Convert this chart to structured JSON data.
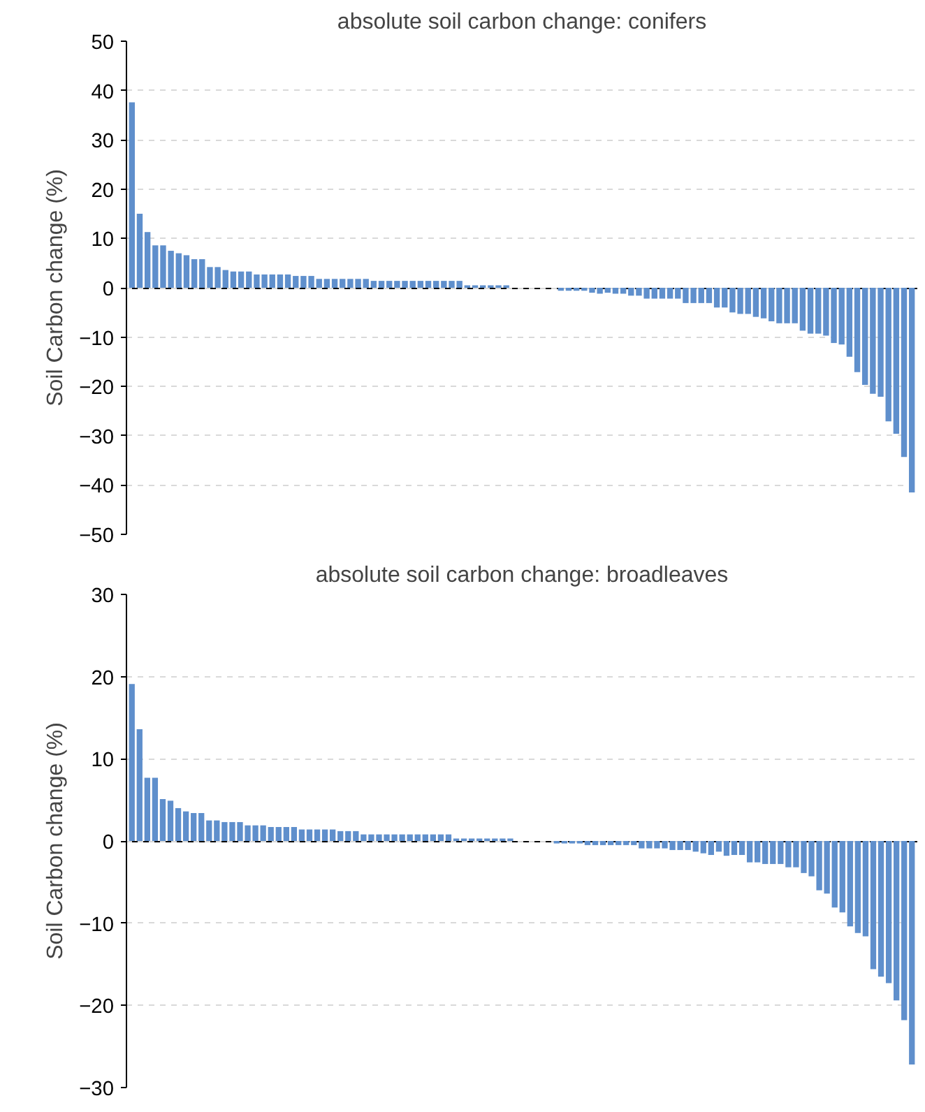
{
  "chart_data": [
    {
      "type": "bar",
      "title": "absolute soil carbon change: conifers",
      "ylabel": "Soil Carbon change (%)",
      "color": "#5f8fcc",
      "ylim": [
        -50,
        50
      ],
      "yticks": [
        -50,
        -40,
        -30,
        -20,
        -10,
        0,
        10,
        20,
        30,
        40,
        50
      ],
      "grid": "y",
      "tick_labels": "y",
      "categories": [
        null,
        null,
        null,
        null,
        null,
        null,
        null,
        null,
        null,
        null,
        null,
        null,
        null,
        null,
        null,
        null,
        null,
        null,
        null,
        null,
        null,
        null,
        null,
        null,
        null,
        null,
        null,
        null,
        null,
        null,
        null,
        null,
        null,
        null,
        null,
        null,
        null,
        null,
        null,
        null,
        null,
        null,
        null,
        null,
        null,
        null,
        null,
        null,
        null,
        null,
        null,
        null,
        null,
        null,
        null,
        null,
        null,
        null,
        null,
        null,
        null,
        null,
        null,
        null,
        null,
        null,
        null,
        null,
        null,
        null,
        null,
        null,
        null,
        null,
        null,
        null,
        null,
        null,
        null,
        null,
        null,
        null,
        null,
        null,
        null,
        null,
        null,
        null,
        null,
        null,
        null,
        null,
        null,
        null,
        null,
        null,
        null,
        null,
        null,
        null,
        null
      ],
      "values": [
        37.6,
        15.0,
        11.3,
        8.6,
        8.6,
        7.5,
        7.0,
        6.6,
        5.8,
        5.8,
        4.2,
        4.2,
        3.6,
        3.3,
        3.3,
        3.3,
        2.7,
        2.7,
        2.7,
        2.7,
        2.7,
        2.4,
        2.4,
        2.4,
        1.8,
        1.8,
        1.8,
        1.8,
        1.8,
        1.8,
        1.8,
        1.4,
        1.4,
        1.4,
        1.4,
        1.4,
        1.4,
        1.4,
        1.4,
        1.4,
        1.4,
        1.4,
        1.4,
        0.5,
        0.5,
        0.5,
        0.5,
        0.5,
        0.5,
        0,
        0,
        0,
        0,
        0,
        0,
        -0.6,
        -0.6,
        -0.6,
        -0.6,
        -1.0,
        -1.2,
        -1.0,
        -1.2,
        -1.2,
        -1.6,
        -1.6,
        -2.2,
        -2.2,
        -2.2,
        -2.2,
        -2.2,
        -3.1,
        -3.1,
        -3.1,
        -3.1,
        -4.0,
        -4.0,
        -5.0,
        -5.3,
        -5.3,
        -5.9,
        -6.2,
        -6.8,
        -7.2,
        -7.2,
        -7.2,
        -8.7,
        -9.3,
        -9.3,
        -9.7,
        -11.2,
        -11.5,
        -14.0,
        -17.1,
        -19.7,
        -21.5,
        -22.1,
        -27.1,
        -29.6,
        -34.3,
        -41.5
      ]
    },
    {
      "type": "bar",
      "title": "absolute soil carbon change: broadleaves",
      "ylabel": "Soil Carbon change (%)",
      "color": "#5f8fcc",
      "ylim": [
        -30,
        30
      ],
      "yticks": [
        -30,
        -20,
        -10,
        0,
        10,
        20,
        30
      ],
      "grid": "y",
      "tick_labels": "y",
      "categories": [
        null,
        null,
        null,
        null,
        null,
        null,
        null,
        null,
        null,
        null,
        null,
        null,
        null,
        null,
        null,
        null,
        null,
        null,
        null,
        null,
        null,
        null,
        null,
        null,
        null,
        null,
        null,
        null,
        null,
        null,
        null,
        null,
        null,
        null,
        null,
        null,
        null,
        null,
        null,
        null,
        null,
        null,
        null,
        null,
        null,
        null,
        null,
        null,
        null,
        null,
        null,
        null,
        null,
        null,
        null,
        null,
        null,
        null,
        null,
        null,
        null,
        null,
        null,
        null,
        null,
        null,
        null,
        null,
        null,
        null,
        null,
        null,
        null,
        null,
        null,
        null,
        null,
        null,
        null,
        null,
        null,
        null,
        null,
        null,
        null,
        null,
        null,
        null,
        null,
        null,
        null,
        null,
        null,
        null,
        null,
        null,
        null,
        null,
        null,
        null,
        null,
        null
      ],
      "values": [
        19.1,
        13.6,
        7.7,
        7.7,
        5.1,
        4.9,
        4.0,
        3.6,
        3.4,
        3.4,
        2.5,
        2.5,
        2.3,
        2.3,
        2.3,
        1.9,
        1.9,
        1.9,
        1.7,
        1.7,
        1.7,
        1.7,
        1.4,
        1.4,
        1.4,
        1.4,
        1.4,
        1.2,
        1.2,
        1.2,
        0.8,
        0.8,
        0.8,
        0.8,
        0.8,
        0.8,
        0.8,
        0.8,
        0.8,
        0.8,
        0.8,
        0.8,
        0.3,
        0.3,
        0.3,
        0.3,
        0.3,
        0.3,
        0.3,
        0.3,
        0,
        0,
        0,
        0,
        0,
        -0.3,
        -0.3,
        -0.3,
        -0.3,
        -0.5,
        -0.5,
        -0.5,
        -0.5,
        -0.5,
        -0.5,
        -0.5,
        -0.9,
        -0.9,
        -0.9,
        -0.9,
        -1.1,
        -1.1,
        -1.1,
        -1.3,
        -1.5,
        -1.7,
        -1.3,
        -1.8,
        -1.7,
        -1.7,
        -2.6,
        -2.6,
        -2.8,
        -2.8,
        -2.8,
        -3.2,
        -3.2,
        -3.9,
        -4.3,
        -6.0,
        -6.4,
        -8.1,
        -8.7,
        -10.4,
        -11.2,
        -11.6,
        -15.6,
        -16.5,
        -17.3,
        -19.4,
        -21.8,
        -27.2
      ]
    }
  ]
}
